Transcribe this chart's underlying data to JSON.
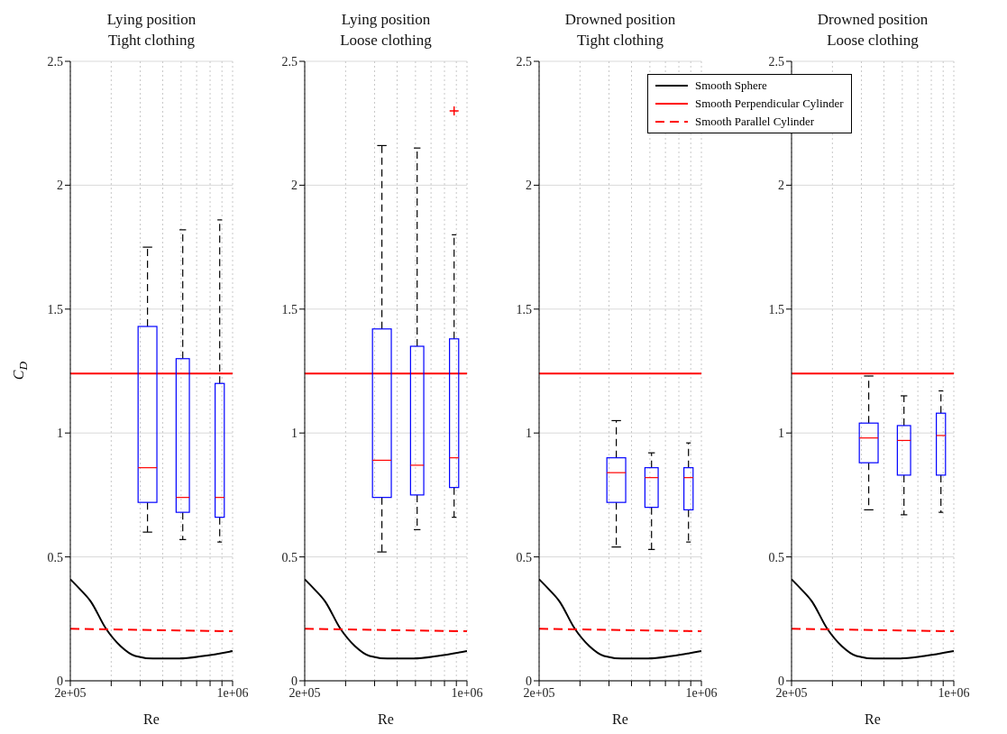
{
  "chart_data": [
    {
      "type": "box",
      "title": "Lying position\nTight clothing",
      "xlabel": "Re",
      "ylabel": "C$_{D}$",
      "log": "x",
      "grid": true,
      "xlim": [
        200000,
        1000000
      ],
      "ylim": [
        0,
        2.5
      ],
      "xticks": [
        {
          "value": 200000,
          "label": "2e+05"
        },
        {
          "value": 300000,
          "label": null
        },
        {
          "value": 400000,
          "label": null
        },
        {
          "value": 500000,
          "label": null
        },
        {
          "value": 600000,
          "label": null
        },
        {
          "value": 700000,
          "label": null
        },
        {
          "value": 800000,
          "label": null
        },
        {
          "value": 900000,
          "label": null
        },
        {
          "value": 1000000,
          "label": "1e+06"
        }
      ],
      "yticks": [
        0,
        0.5,
        1,
        1.5,
        2,
        2.5
      ],
      "series": [
        {
          "color": "#0000ff",
          "x": [
            430000,
            610000,
            880000
          ],
          "boxes": [
            {
              "low": 0.6,
              "q1": 0.72,
              "median": 0.86,
              "q3": 1.43,
              "high": 1.75
            },
            {
              "low": 0.57,
              "q1": 0.68,
              "median": 0.74,
              "q3": 1.3,
              "high": 1.82
            },
            {
              "low": 0.56,
              "q1": 0.66,
              "median": 0.74,
              "q3": 1.2,
              "high": 1.86
            }
          ]
        },
        {
          "type": "line",
          "color": "#000000",
          "x": [
            200000,
            220000,
            245000,
            285000,
            329000,
            381000,
            454000,
            590000,
            747000,
            1000000
          ],
          "values": [
            0.41,
            0.37,
            0.32,
            0.21,
            0.14,
            0.1,
            0.09,
            0.09,
            0.1,
            0.12
          ]
        },
        {
          "type": "line",
          "color": "#ff0000",
          "x": [
            200000,
            1000000
          ],
          "values": [
            1.24,
            1.24
          ]
        },
        {
          "type": "line",
          "color": "#ff0000",
          "line_style": "dashed",
          "x": [
            200000,
            1000000
          ],
          "values": [
            0.21,
            0.2
          ]
        }
      ]
    },
    {
      "type": "box",
      "title": "Lying position\nLoose clothing",
      "xlabel": "Re",
      "log": "x",
      "grid": true,
      "xlim": [
        200000,
        1000000
      ],
      "ylim": [
        0,
        2.5
      ],
      "xticks": [
        {
          "value": 200000,
          "label": "2e+05"
        },
        {
          "value": 300000,
          "label": null
        },
        {
          "value": 400000,
          "label": null
        },
        {
          "value": 500000,
          "label": null
        },
        {
          "value": 600000,
          "label": null
        },
        {
          "value": 700000,
          "label": null
        },
        {
          "value": 800000,
          "label": null
        },
        {
          "value": 900000,
          "label": null
        },
        {
          "value": 1000000,
          "label": "1e+06"
        }
      ],
      "yticks": [
        0,
        0.5,
        1,
        1.5,
        2,
        2.5
      ],
      "series": [
        {
          "color": "#0000ff",
          "x": [
            430000,
            610000,
            880000
          ],
          "boxes": [
            {
              "low": 0.52,
              "q1": 0.74,
              "median": 0.89,
              "q3": 1.42,
              "high": 2.16
            },
            {
              "low": 0.61,
              "q1": 0.75,
              "median": 0.87,
              "q3": 1.35,
              "high": 2.15
            },
            {
              "low": 0.66,
              "q1": 0.78,
              "median": 0.9,
              "q3": 1.38,
              "high": 1.8,
              "outliers": [
                2.3
              ]
            }
          ]
        },
        {
          "type": "line",
          "color": "#000000",
          "x": [
            200000,
            220000,
            245000,
            285000,
            329000,
            381000,
            454000,
            590000,
            747000,
            1000000
          ],
          "values": [
            0.41,
            0.37,
            0.32,
            0.21,
            0.14,
            0.1,
            0.09,
            0.09,
            0.1,
            0.12
          ]
        },
        {
          "type": "line",
          "color": "#ff0000",
          "x": [
            200000,
            1000000
          ],
          "values": [
            1.24,
            1.24
          ]
        },
        {
          "type": "line",
          "color": "#ff0000",
          "line_style": "dashed",
          "x": [
            200000,
            1000000
          ],
          "values": [
            0.21,
            0.2
          ]
        }
      ]
    },
    {
      "type": "box",
      "title": "Drowned position\nTight clothing",
      "xlabel": "Re",
      "log": "x",
      "grid": true,
      "legend": "top right",
      "xlim": [
        200000,
        1000000
      ],
      "ylim": [
        0,
        2.5
      ],
      "xticks": [
        {
          "value": 200000,
          "label": "2e+05"
        },
        {
          "value": 300000,
          "label": null
        },
        {
          "value": 400000,
          "label": null
        },
        {
          "value": 500000,
          "label": null
        },
        {
          "value": 600000,
          "label": null
        },
        {
          "value": 700000,
          "label": null
        },
        {
          "value": 800000,
          "label": null
        },
        {
          "value": 900000,
          "label": null
        },
        {
          "value": 1000000,
          "label": "1e+06"
        }
      ],
      "yticks": [
        0,
        0.5,
        1,
        1.5,
        2,
        2.5
      ],
      "series": [
        {
          "color": "#0000ff",
          "x": [
            430000,
            610000,
            880000
          ],
          "boxes": [
            {
              "low": 0.54,
              "q1": 0.72,
              "median": 0.84,
              "q3": 0.9,
              "high": 1.05
            },
            {
              "low": 0.53,
              "q1": 0.7,
              "median": 0.82,
              "q3": 0.86,
              "high": 0.92
            },
            {
              "low": 0.56,
              "q1": 0.69,
              "median": 0.82,
              "q3": 0.86,
              "high": 0.96
            }
          ]
        },
        {
          "type": "line",
          "name": "Smooth Sphere",
          "color": "#000000",
          "x": [
            200000,
            220000,
            245000,
            285000,
            329000,
            381000,
            454000,
            590000,
            747000,
            1000000
          ],
          "values": [
            0.41,
            0.37,
            0.32,
            0.21,
            0.14,
            0.1,
            0.09,
            0.09,
            0.1,
            0.12
          ]
        },
        {
          "type": "line",
          "name": "Smooth Perpendicular Cylinder",
          "color": "#ff0000",
          "x": [
            200000,
            1000000
          ],
          "values": [
            1.24,
            1.24
          ]
        },
        {
          "type": "line",
          "name": "Smooth Parallel Cylinder",
          "color": "#ff0000",
          "line_style": "dashed",
          "x": [
            200000,
            1000000
          ],
          "values": [
            0.21,
            0.2
          ]
        }
      ]
    },
    {
      "type": "box",
      "title": "Drowned position\nLoose clothing",
      "xlabel": "Re",
      "log": "x",
      "grid": true,
      "xlim": [
        200000,
        1000000
      ],
      "ylim": [
        0,
        2.5
      ],
      "xticks": [
        {
          "value": 200000,
          "label": "2e+05"
        },
        {
          "value": 300000,
          "label": null
        },
        {
          "value": 400000,
          "label": null
        },
        {
          "value": 500000,
          "label": null
        },
        {
          "value": 600000,
          "label": null
        },
        {
          "value": 700000,
          "label": null
        },
        {
          "value": 800000,
          "label": null
        },
        {
          "value": 900000,
          "label": null
        },
        {
          "value": 1000000,
          "label": "1e+06"
        }
      ],
      "yticks": [
        0,
        0.5,
        1,
        1.5,
        2,
        2.5
      ],
      "series": [
        {
          "color": "#0000ff",
          "x": [
            430000,
            610000,
            880000
          ],
          "boxes": [
            {
              "low": 0.69,
              "q1": 0.88,
              "median": 0.98,
              "q3": 1.04,
              "high": 1.23
            },
            {
              "low": 0.67,
              "q1": 0.83,
              "median": 0.97,
              "q3": 1.03,
              "high": 1.15
            },
            {
              "low": 0.68,
              "q1": 0.83,
              "median": 0.99,
              "q3": 1.08,
              "high": 1.17
            }
          ]
        },
        {
          "type": "line",
          "color": "#000000",
          "x": [
            200000,
            220000,
            245000,
            285000,
            329000,
            381000,
            454000,
            590000,
            747000,
            1000000
          ],
          "values": [
            0.41,
            0.37,
            0.32,
            0.21,
            0.14,
            0.1,
            0.09,
            0.09,
            0.1,
            0.12
          ]
        },
        {
          "type": "line",
          "color": "#ff0000",
          "x": [
            200000,
            1000000
          ],
          "values": [
            1.24,
            1.24
          ]
        },
        {
          "type": "line",
          "color": "#ff0000",
          "line_style": "dashed",
          "x": [
            200000,
            1000000
          ],
          "values": [
            0.21,
            0.2
          ]
        }
      ]
    }
  ]
}
